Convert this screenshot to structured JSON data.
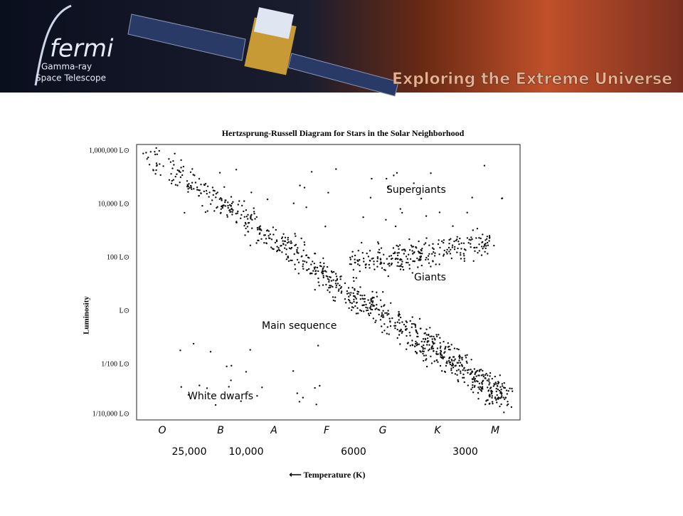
{
  "banner": {
    "logo_title": "fermi",
    "logo_subtitle_1": "Gamma-ray",
    "logo_subtitle_2": "Space Telescope",
    "tagline": "Exploring the Extreme Universe"
  },
  "diagram": {
    "title": "Hertzsprung-Russell Diagram for Stars in the Solar Neighborhood",
    "y_axis_label": "Luminosity",
    "y_ticks": [
      "1,000,000 L⊙",
      "10,000 L⊙",
      "100 L⊙",
      "L⊙",
      "1/100 L⊙",
      "1/10,000 L⊙"
    ],
    "spectral_classes": [
      "O",
      "B",
      "A",
      "F",
      "G",
      "K",
      "M"
    ],
    "temperatures": [
      "25,000",
      "10,000",
      "6000",
      "3000"
    ],
    "x_axis_label": "⟵ Temperature (K)",
    "regions": [
      "Supergiants",
      "Giants",
      "Main sequence",
      "White dwarfs"
    ]
  }
}
